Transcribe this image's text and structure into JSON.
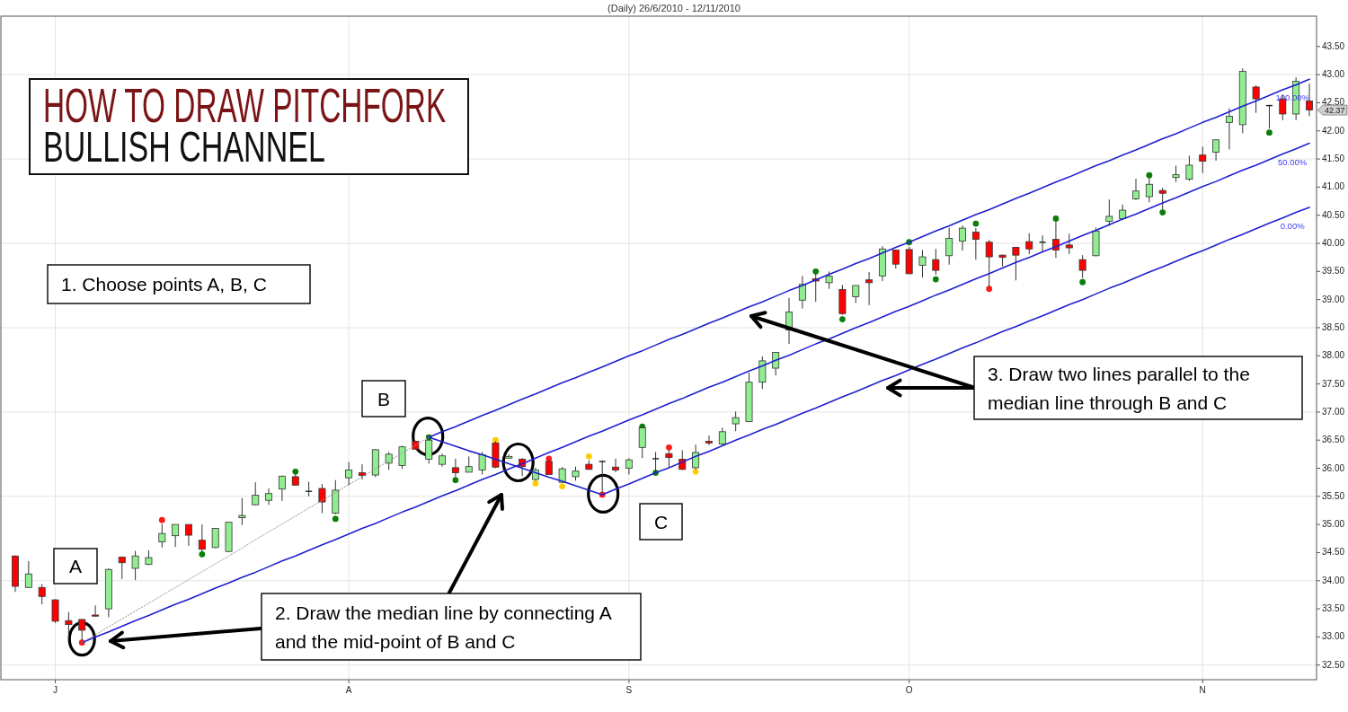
{
  "chart_data": {
    "type": "candlestick",
    "title": "HOW TO DRAW PITCHFORK",
    "subtitle": "BULLISH CHANNEL",
    "annotations": [
      "(Daily) 26/6/2010 - 12/11/2010",
      "1. Choose points A, B, C",
      "2. Draw the median line by connecting A and the mid-point of B and C",
      "3. Draw two lines parallel to the median line through B and C",
      "A",
      "B",
      "C",
      "100.00%",
      "50.00%",
      "0.00%",
      "42.37"
    ],
    "categories": [
      null,
      null,
      null,
      "J",
      null,
      null,
      null,
      null,
      null,
      null,
      null,
      null,
      null,
      null,
      null,
      null,
      null,
      null,
      null,
      null,
      null,
      null,
      null,
      null,
      null,
      "A",
      null,
      null,
      null,
      null,
      null,
      null,
      null,
      null,
      null,
      null,
      null,
      null,
      null,
      null,
      null,
      null,
      null,
      null,
      null,
      null,
      "S",
      null,
      null,
      null,
      null,
      null,
      null,
      null,
      null,
      null,
      null,
      null,
      null,
      null,
      null,
      null,
      null,
      null,
      null,
      null,
      null,
      "O",
      null,
      null,
      null,
      null,
      null,
      null,
      null,
      null,
      null,
      null,
      null,
      null,
      null,
      null,
      null,
      null,
      null,
      null,
      null,
      null,
      null,
      "N",
      null,
      null,
      null,
      null,
      null,
      null,
      null,
      null
    ],
    "ohlc": [
      [
        34.44,
        34.45,
        33.8,
        33.9
      ],
      [
        33.88,
        34.35,
        33.87,
        34.12
      ],
      [
        33.88,
        33.94,
        33.58,
        33.72
      ],
      [
        33.66,
        33.67,
        33.25,
        33.28
      ],
      [
        33.29,
        33.44,
        32.96,
        33.22
      ],
      [
        33.31,
        33.32,
        32.94,
        33.12
      ],
      [
        33.39,
        33.56,
        33.36,
        33.37
      ],
      [
        33.5,
        34.22,
        33.35,
        34.2
      ],
      [
        34.42,
        34.43,
        34.03,
        34.32
      ],
      [
        34.22,
        34.53,
        34.01,
        34.44
      ],
      [
        34.29,
        34.54,
        34.28,
        34.41
      ],
      [
        34.69,
        35.01,
        34.59,
        34.84
      ],
      [
        34.8,
        35.0,
        34.6,
        35.0
      ],
      [
        35.0,
        35.0,
        34.62,
        34.81
      ],
      [
        34.72,
        35.0,
        34.52,
        34.56
      ],
      [
        34.59,
        34.94,
        34.58,
        34.93
      ],
      [
        34.52,
        35.05,
        34.51,
        35.04
      ],
      [
        35.12,
        35.47,
        34.99,
        35.16
      ],
      [
        35.35,
        35.75,
        35.34,
        35.52
      ],
      [
        35.43,
        35.64,
        35.35,
        35.55
      ],
      [
        35.63,
        35.87,
        35.42,
        35.86
      ],
      [
        35.85,
        35.89,
        35.69,
        35.7
      ],
      [
        35.59,
        35.76,
        35.5,
        35.59
      ],
      [
        35.64,
        35.72,
        35.2,
        35.4
      ],
      [
        35.2,
        35.79,
        35.18,
        35.61
      ],
      [
        35.83,
        36.11,
        35.7,
        35.97
      ],
      [
        35.92,
        36.07,
        35.8,
        35.87
      ],
      [
        35.88,
        36.34,
        35.84,
        36.33
      ],
      [
        36.09,
        36.29,
        35.97,
        36.25
      ],
      [
        36.05,
        36.4,
        35.99,
        36.38
      ],
      [
        36.48,
        36.49,
        36.33,
        36.34
      ],
      [
        36.16,
        36.52,
        36.08,
        36.5
      ],
      [
        36.07,
        36.26,
        36.03,
        36.22
      ],
      [
        36.01,
        36.17,
        35.85,
        35.92
      ],
      [
        35.93,
        36.21,
        35.93,
        36.03
      ],
      [
        35.97,
        36.29,
        35.89,
        36.24
      ],
      [
        36.45,
        36.48,
        36.0,
        36.02
      ],
      [
        36.18,
        36.25,
        36.17,
        36.21
      ],
      [
        36.16,
        36.18,
        35.86,
        36.03
      ],
      [
        35.8,
        36.01,
        35.78,
        35.97
      ],
      [
        36.12,
        36.14,
        35.88,
        35.89
      ],
      [
        35.75,
        36.02,
        35.74,
        35.99
      ],
      [
        35.85,
        36.03,
        35.78,
        35.95
      ],
      [
        36.07,
        36.14,
        35.97,
        35.98
      ],
      [
        36.12,
        36.14,
        35.57,
        36.12
      ],
      [
        36.02,
        36.17,
        35.93,
        35.97
      ],
      [
        36.0,
        36.18,
        35.89,
        36.15
      ],
      [
        36.37,
        36.73,
        36.18,
        36.72
      ],
      [
        36.17,
        36.29,
        35.94,
        36.17
      ],
      [
        36.26,
        36.32,
        36.02,
        36.19
      ],
      [
        36.16,
        36.32,
        35.97,
        35.98
      ],
      [
        36.01,
        36.42,
        35.98,
        36.28
      ],
      [
        36.48,
        36.58,
        36.41,
        36.45
      ],
      [
        36.43,
        36.72,
        36.41,
        36.65
      ],
      [
        36.79,
        37.01,
        36.66,
        36.9
      ],
      [
        36.83,
        37.7,
        36.82,
        37.53
      ],
      [
        37.53,
        37.99,
        37.41,
        37.91
      ],
      [
        37.78,
        38.07,
        37.65,
        38.06
      ],
      [
        38.46,
        39.03,
        38.21,
        38.78
      ],
      [
        38.99,
        39.42,
        38.84,
        39.27
      ],
      [
        39.37,
        39.46,
        38.96,
        39.33
      ],
      [
        39.3,
        39.5,
        39.19,
        39.42
      ],
      [
        39.18,
        39.26,
        38.73,
        38.75
      ],
      [
        39.05,
        39.25,
        38.94,
        39.25
      ],
      [
        39.35,
        39.49,
        38.9,
        39.3
      ],
      [
        39.42,
        39.95,
        39.33,
        39.9
      ],
      [
        39.88,
        39.89,
        39.55,
        39.63
      ],
      [
        39.89,
        39.94,
        39.45,
        39.46
      ],
      [
        39.61,
        39.88,
        39.39,
        39.76
      ],
      [
        39.71,
        39.9,
        39.44,
        39.52
      ],
      [
        39.78,
        40.28,
        39.62,
        40.09
      ],
      [
        40.04,
        40.32,
        39.87,
        40.27
      ],
      [
        40.2,
        40.27,
        39.71,
        40.07
      ],
      [
        40.02,
        40.06,
        39.22,
        39.76
      ],
      [
        39.79,
        39.8,
        39.59,
        39.75
      ],
      [
        39.93,
        39.94,
        39.34,
        39.79
      ],
      [
        40.03,
        40.18,
        39.81,
        39.9
      ],
      [
        40.02,
        40.14,
        39.84,
        40.02
      ],
      [
        40.07,
        40.39,
        39.74,
        39.88
      ],
      [
        39.97,
        40.17,
        39.81,
        39.92
      ],
      [
        39.71,
        39.79,
        39.38,
        39.52
      ],
      [
        39.78,
        40.28,
        39.77,
        40.22
      ],
      [
        40.39,
        40.78,
        40.31,
        40.48
      ],
      [
        40.44,
        40.69,
        40.42,
        40.59
      ],
      [
        40.79,
        41.15,
        40.77,
        40.93
      ],
      [
        40.83,
        41.15,
        40.73,
        41.05
      ],
      [
        40.94,
        40.99,
        40.6,
        40.89
      ],
      [
        41.17,
        41.38,
        41.09,
        41.22
      ],
      [
        41.14,
        41.56,
        41.11,
        41.39
      ],
      [
        41.57,
        41.72,
        41.25,
        41.46
      ],
      [
        41.62,
        41.85,
        41.47,
        41.84
      ],
      [
        42.15,
        42.4,
        41.67,
        42.26
      ],
      [
        42.11,
        43.11,
        41.96,
        43.06
      ],
      [
        42.78,
        42.81,
        42.32,
        42.57
      ],
      [
        42.45,
        42.46,
        42.04,
        42.45
      ],
      [
        42.57,
        42.65,
        42.19,
        42.3
      ],
      [
        42.3,
        42.95,
        42.19,
        42.88
      ],
      [
        42.53,
        42.84,
        42.26,
        42.37
      ]
    ],
    "colors": [
      "#ff0000",
      "#90ee90",
      "#ff0000",
      "#ff0000",
      "#ff0000",
      "#ff0000",
      "#ff0000",
      "#90ee90",
      "#ff0000",
      "#90ee90",
      "#90ee90",
      "#90ee90",
      "#90ee90",
      "#ff0000",
      "#ff0000",
      "#90ee90",
      "#90ee90",
      "#90ee90",
      "#90ee90",
      "#90ee90",
      "#90ee90",
      "#ff0000",
      "#222222",
      "#ff0000",
      "#90ee90",
      "#90ee90",
      "#ff0000",
      "#90ee90",
      "#90ee90",
      "#90ee90",
      "#ff0000",
      "#90ee90",
      "#90ee90",
      "#ff0000",
      "#90ee90",
      "#90ee90",
      "#ff0000",
      "#90ee90",
      "#ff0000",
      "#90ee90",
      "#ff0000",
      "#90ee90",
      "#90ee90",
      "#ff0000",
      "#222222",
      "#ff0000",
      "#90ee90",
      "#90ee90",
      "#222222",
      "#ff0000",
      "#ff0000",
      "#90ee90",
      "#ff0000",
      "#90ee90",
      "#90ee90",
      "#90ee90",
      "#90ee90",
      "#90ee90",
      "#90ee90",
      "#90ee90",
      "#ff0000",
      "#90ee90",
      "#ff0000",
      "#90ee90",
      "#ff0000",
      "#90ee90",
      "#ff0000",
      "#ff0000",
      "#90ee90",
      "#ff0000",
      "#90ee90",
      "#90ee90",
      "#ff0000",
      "#ff0000",
      "#ff0000",
      "#ff0000",
      "#ff0000",
      "#222222",
      "#ff0000",
      "#ff0000",
      "#ff0000",
      "#90ee90",
      "#90ee90",
      "#90ee90",
      "#90ee90",
      "#90ee90",
      "#ff0000",
      "#90ee90",
      "#90ee90",
      "#ff0000",
      "#90ee90",
      "#90ee90",
      "#90ee90",
      "#ff0000",
      "#222222",
      "#ff0000",
      "#90ee90",
      "#ff0000"
    ],
    "series": [
      {
        "type": "line",
        "color": "#1f1fd0",
        "values": [
          null,
          null,
          null,
          null,
          null,
          32.9,
          33.0,
          33.09,
          33.19,
          33.29,
          33.38,
          33.48,
          33.58,
          33.67,
          33.77,
          33.87,
          33.96,
          34.06,
          34.15,
          34.25,
          34.35,
          34.44,
          34.54,
          34.64,
          34.73,
          34.83,
          34.93,
          35.02,
          35.12,
          35.22,
          35.31,
          35.41,
          35.51,
          35.6,
          35.7,
          35.8,
          35.89,
          35.99,
          36.08,
          36.18,
          36.28,
          36.37,
          36.47,
          36.57,
          36.66,
          36.76,
          36.86,
          36.95,
          37.05,
          37.15,
          37.24,
          37.34,
          37.44,
          37.53,
          37.63,
          37.73,
          37.82,
          37.92,
          38.01,
          38.11,
          38.21,
          38.3,
          38.4,
          38.5,
          38.59,
          38.69,
          38.79,
          38.88,
          38.98,
          39.08,
          39.17,
          39.27,
          39.37,
          39.46,
          39.56,
          39.66,
          39.75,
          39.85,
          39.94,
          40.04,
          40.14,
          40.23,
          40.33,
          40.43,
          40.52,
          40.62,
          40.72,
          40.81,
          40.91,
          41.01,
          41.1,
          41.2,
          41.3,
          41.39,
          41.49,
          41.59,
          41.68,
          41.78
        ]
      },
      {
        "type": "line",
        "color": "#1f1fd0",
        "values": [
          null,
          null,
          null,
          null,
          null,
          null,
          null,
          null,
          null,
          null,
          null,
          null,
          null,
          null,
          null,
          null,
          null,
          null,
          null,
          null,
          null,
          null,
          null,
          null,
          null,
          null,
          null,
          null,
          null,
          null,
          null,
          36.55,
          36.65,
          36.74,
          36.84,
          36.94,
          37.03,
          37.13,
          37.23,
          37.32,
          37.42,
          37.52,
          37.61,
          37.71,
          37.8,
          37.9,
          38.0,
          38.09,
          38.19,
          38.29,
          38.38,
          38.48,
          38.58,
          38.67,
          38.77,
          38.87,
          38.96,
          39.06,
          39.16,
          39.25,
          39.35,
          39.45,
          39.54,
          39.64,
          39.73,
          39.83,
          39.93,
          40.02,
          40.12,
          40.22,
          40.31,
          40.41,
          40.51,
          40.6,
          40.7,
          40.8,
          40.89,
          40.99,
          41.09,
          41.18,
          41.28,
          41.38,
          41.47,
          41.57,
          41.66,
          41.76,
          41.86,
          41.95,
          42.05,
          42.15,
          42.24,
          42.34,
          42.44,
          42.53,
          42.63,
          42.73,
          42.82,
          42.92
        ]
      },
      {
        "type": "line",
        "color": "#1f1fd0",
        "values": [
          null,
          null,
          null,
          null,
          null,
          null,
          null,
          null,
          null,
          null,
          null,
          null,
          null,
          null,
          null,
          null,
          null,
          null,
          null,
          null,
          null,
          null,
          null,
          null,
          null,
          null,
          null,
          null,
          null,
          null,
          null,
          null,
          null,
          null,
          null,
          null,
          null,
          null,
          null,
          null,
          null,
          null,
          null,
          null,
          35.53,
          35.63,
          35.72,
          35.82,
          35.92,
          36.01,
          36.11,
          36.21,
          36.3,
          36.4,
          36.5,
          36.59,
          36.69,
          36.78,
          36.88,
          36.98,
          37.07,
          37.17,
          37.27,
          37.36,
          37.46,
          37.56,
          37.65,
          37.75,
          37.85,
          37.94,
          38.04,
          38.14,
          38.23,
          38.33,
          38.43,
          38.52,
          38.62,
          38.71,
          38.81,
          38.91,
          39.0,
          39.1,
          39.2,
          39.29,
          39.39,
          39.49,
          39.58,
          39.68,
          39.78,
          39.87,
          39.97,
          40.07,
          40.16,
          40.26,
          40.36,
          40.45,
          40.55,
          40.64
        ]
      },
      {
        "type": "line",
        "color": "#1f1fd0",
        "values": [
          null,
          null,
          null,
          null,
          null,
          null,
          null,
          null,
          null,
          null,
          null,
          null,
          null,
          null,
          null,
          null,
          null,
          null,
          null,
          null,
          null,
          null,
          null,
          null,
          null,
          null,
          null,
          null,
          null,
          null,
          null,
          36.55,
          36.47,
          36.39,
          36.31,
          36.24,
          36.16,
          36.08,
          36.0,
          35.92,
          35.84,
          35.77,
          35.69,
          35.61,
          35.53,
          null,
          null,
          null,
          null,
          null,
          null,
          null,
          null,
          null,
          null,
          null,
          null,
          null,
          null,
          null,
          null,
          null,
          null,
          null,
          null,
          null,
          null,
          null,
          null,
          null,
          null,
          null,
          null,
          null,
          null,
          null,
          null,
          null,
          null,
          null,
          null,
          null,
          null,
          null,
          null,
          null,
          null,
          null,
          null,
          null,
          null,
          null,
          null,
          null,
          null,
          null,
          null,
          null
        ]
      },
      {
        "type": "line",
        "color": "#9a9a9a",
        "line_style": "dotted",
        "values": [
          null,
          null,
          null,
          null,
          null,
          32.9,
          33.04,
          33.18,
          33.32,
          33.46,
          33.6,
          33.74,
          33.88,
          34.02,
          34.16,
          34.3,
          34.44,
          34.58,
          34.73,
          34.87,
          35.01,
          35.15,
          35.29,
          35.43,
          35.57,
          35.71,
          35.85,
          35.99,
          36.13,
          36.27,
          36.41,
          36.55,
          null,
          null,
          null,
          null,
          null,
          null,
          null,
          null,
          null,
          null,
          null,
          null,
          null,
          null,
          null,
          null,
          null,
          null,
          null,
          null,
          null,
          null,
          null,
          null,
          null,
          null,
          null,
          null,
          null,
          null,
          null,
          null,
          null,
          null,
          null,
          null,
          null,
          null,
          null,
          null,
          null,
          null,
          null,
          null,
          null,
          null,
          null,
          null,
          null,
          null,
          null,
          null,
          null,
          null,
          null,
          null,
          null,
          null,
          null,
          null,
          null,
          null,
          null,
          null,
          null,
          null
        ]
      },
      {
        "type": "scatter",
        "marker": "circle",
        "color": "#0a7d0a",
        "values": [
          null,
          null,
          null,
          null,
          null,
          null,
          null,
          null,
          null,
          null,
          null,
          null,
          null,
          null,
          34.47,
          null,
          null,
          null,
          null,
          null,
          null,
          35.94,
          null,
          null,
          35.1,
          null,
          null,
          null,
          null,
          null,
          null,
          36.55,
          null,
          35.79,
          null,
          null,
          null,
          null,
          null,
          null,
          null,
          null,
          null,
          null,
          null,
          null,
          null,
          36.74,
          35.92,
          null,
          null,
          null,
          null,
          null,
          null,
          null,
          null,
          null,
          null,
          null,
          39.5,
          null,
          38.65,
          null,
          null,
          null,
          null,
          40.02,
          null,
          39.36,
          null,
          null,
          40.35,
          null,
          null,
          null,
          null,
          null,
          40.44,
          null,
          39.31,
          null,
          null,
          null,
          null,
          41.21,
          40.55,
          null,
          null,
          null,
          null,
          null,
          null,
          null,
          41.97,
          null,
          null,
          null
        ]
      },
      {
        "type": "scatter",
        "marker": "circle",
        "color": "#ff1a1a",
        "values": [
          null,
          null,
          null,
          null,
          null,
          32.9,
          null,
          null,
          null,
          null,
          null,
          35.08,
          null,
          null,
          null,
          null,
          null,
          null,
          null,
          null,
          null,
          null,
          null,
          null,
          null,
          null,
          null,
          null,
          null,
          null,
          null,
          null,
          null,
          null,
          null,
          null,
          null,
          null,
          null,
          null,
          36.17,
          null,
          null,
          null,
          35.53,
          null,
          null,
          null,
          null,
          36.37,
          null,
          null,
          null,
          null,
          null,
          null,
          null,
          null,
          null,
          null,
          null,
          null,
          null,
          null,
          null,
          null,
          null,
          null,
          null,
          null,
          null,
          null,
          null,
          39.19,
          null,
          null,
          null,
          null,
          null,
          null,
          null,
          null,
          null,
          null,
          null,
          null,
          null,
          null,
          null,
          null,
          null,
          null,
          null,
          null,
          null,
          null,
          null,
          null
        ]
      },
      {
        "type": "scatter",
        "marker": "circle",
        "color": "#ffcc00",
        "values": [
          null,
          null,
          null,
          null,
          null,
          null,
          null,
          null,
          null,
          null,
          null,
          null,
          null,
          null,
          null,
          null,
          null,
          null,
          null,
          null,
          null,
          null,
          null,
          null,
          null,
          null,
          null,
          null,
          null,
          null,
          null,
          null,
          null,
          null,
          null,
          null,
          36.5,
          null,
          null,
          35.73,
          null,
          35.68,
          null,
          36.21,
          null,
          null,
          null,
          null,
          null,
          null,
          null,
          35.94,
          null,
          null,
          null,
          null,
          null,
          null,
          null,
          null,
          null,
          null,
          null,
          null,
          null,
          null,
          null,
          null,
          null,
          null,
          null,
          null,
          null,
          null,
          null,
          null,
          null,
          null,
          null,
          null,
          null,
          null,
          null,
          null,
          null,
          null,
          null,
          null,
          null,
          null,
          null,
          null,
          null,
          null,
          null,
          null,
          null,
          null
        ]
      }
    ],
    "ylim": [
      32.24,
      44.04
    ],
    "yticks": [
      {
        "value": 32.5,
        "label": "32.50"
      },
      {
        "value": 33,
        "label": "33.00"
      },
      {
        "value": 33.5,
        "label": "33.50"
      },
      {
        "value": 34,
        "label": "34.00"
      },
      {
        "value": 34.5,
        "label": "34.50"
      },
      {
        "value": 35,
        "label": "35.00"
      },
      {
        "value": 35.5,
        "label": "35.50"
      },
      {
        "value": 36,
        "label": "36.00"
      },
      {
        "value": 36.5,
        "label": "36.50"
      },
      {
        "value": 37,
        "label": "37.00"
      },
      {
        "value": 37.5,
        "label": "37.50"
      },
      {
        "value": 38,
        "label": "38.00"
      },
      {
        "value": 38.5,
        "label": "38.50"
      },
      {
        "value": 39,
        "label": "39.00"
      },
      {
        "value": 39.5,
        "label": "39.50"
      },
      {
        "value": 40,
        "label": "40.00"
      },
      {
        "value": 40.5,
        "label": "40.50"
      },
      {
        "value": 41,
        "label": "41.00"
      },
      {
        "value": 41.5,
        "label": "41.50"
      },
      {
        "value": 42,
        "label": "42.00"
      },
      {
        "value": 42.5,
        "label": "42.50"
      },
      {
        "value": 43,
        "label": "43.00"
      },
      {
        "value": 43.5,
        "label": "43.50"
      }
    ],
    "grid": true
  }
}
